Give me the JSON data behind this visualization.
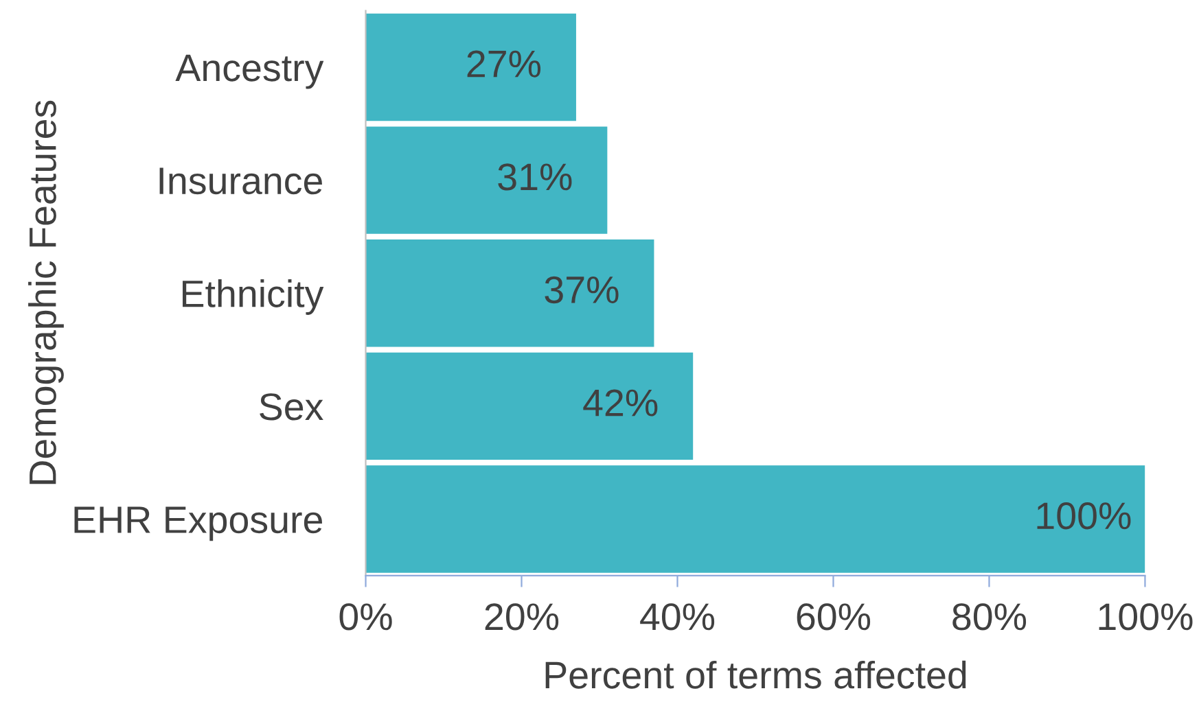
{
  "chart_data": {
    "type": "bar",
    "orientation": "horizontal",
    "xlabel": "Percent of terms affected",
    "ylabel": "Demographic Features",
    "categories": [
      "Ancestry",
      "Insurance",
      "Ethnicity",
      "Sex",
      "EHR Exposure"
    ],
    "values": [
      27,
      31,
      37,
      42,
      100
    ],
    "color": "#41b6c4",
    "value_labels": [
      "27%",
      "31%",
      "37%",
      "42%",
      "100%"
    ],
    "xlim": [
      0,
      100
    ],
    "xticks": [
      {
        "value": 0,
        "label": "0%"
      },
      {
        "value": 20,
        "label": "20%"
      },
      {
        "value": 40,
        "label": "40%"
      },
      {
        "value": 60,
        "label": "60%"
      },
      {
        "value": 80,
        "label": "80%"
      },
      {
        "value": 100,
        "label": "100%"
      }
    ],
    "grid": false,
    "legend": false
  }
}
